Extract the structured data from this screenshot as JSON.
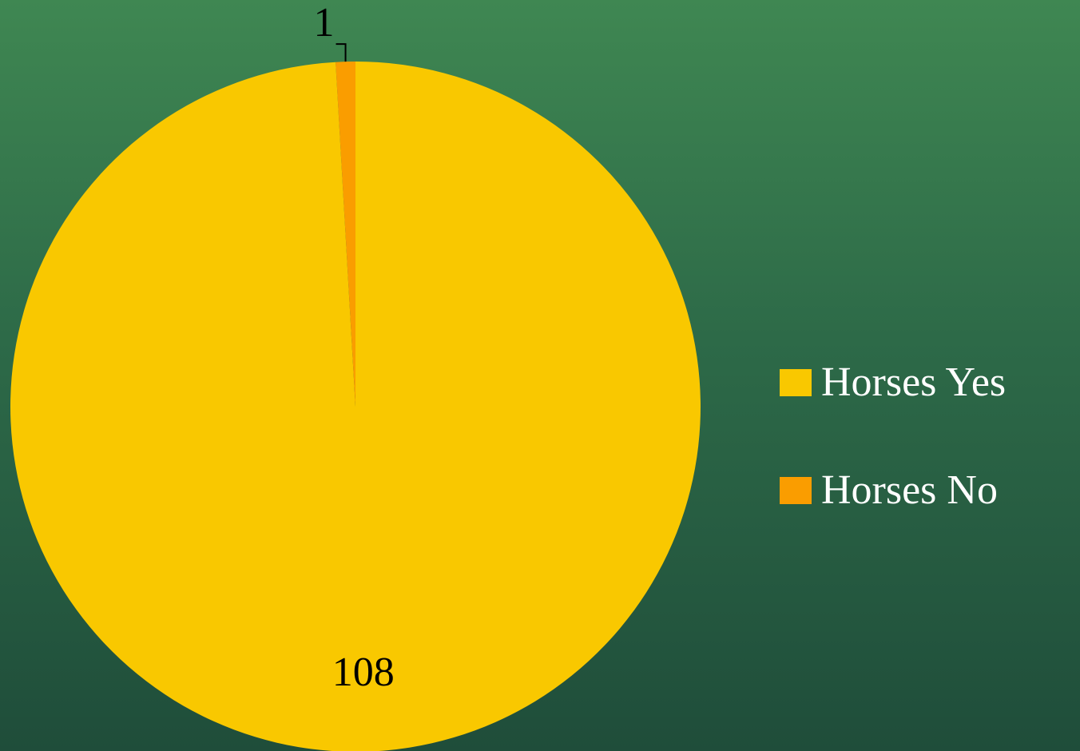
{
  "chart_data": {
    "type": "pie",
    "categories": [
      "Horses Yes",
      "Horses No"
    ],
    "values": [
      108,
      1
    ],
    "colors": [
      "#f9c800",
      "#fa9d00"
    ],
    "legend": "right"
  }
}
